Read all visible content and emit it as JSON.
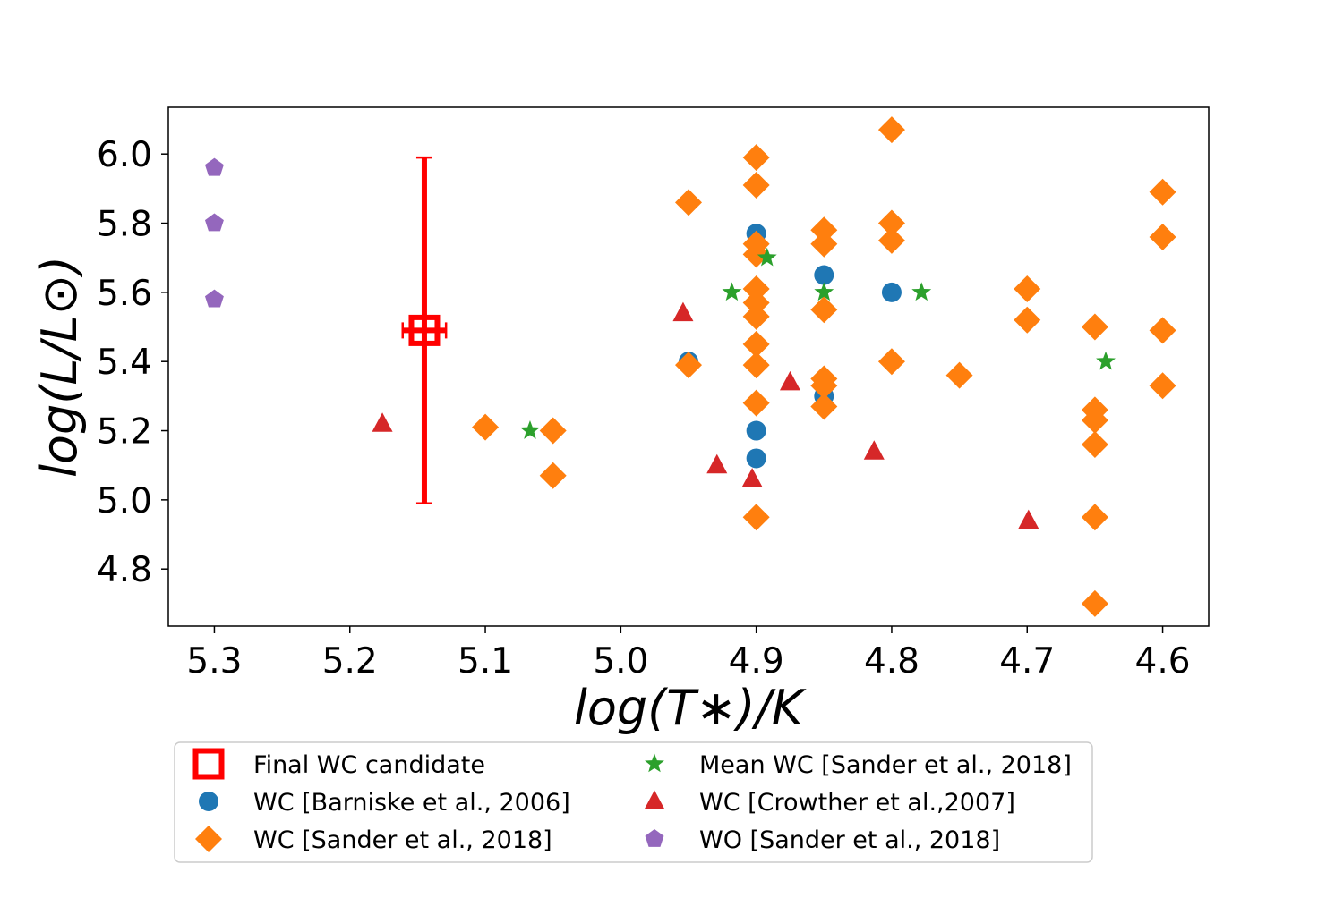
{
  "chart_data": {
    "type": "scatter",
    "title": "",
    "xlabel": "log(T∗)/K",
    "ylabel": "log(L/L⊙)",
    "x_inverted": true,
    "xlim": [
      5.334,
      4.566
    ],
    "ylim": [
      4.635,
      6.135
    ],
    "x_ticks": [
      5.3,
      5.2,
      5.1,
      5.0,
      4.9,
      4.8,
      4.7,
      4.6
    ],
    "x_tick_labels": [
      "5.3",
      "5.2",
      "5.1",
      "5.0",
      "4.9",
      "4.8",
      "4.7",
      "4.6"
    ],
    "y_ticks": [
      4.8,
      5.0,
      5.2,
      5.4,
      5.6,
      5.8,
      6.0
    ],
    "y_tick_labels": [
      "4.8",
      "5.0",
      "5.2",
      "5.4",
      "5.6",
      "5.8",
      "6.0"
    ],
    "grid": false,
    "legend_position": "bottom",
    "series": [
      {
        "name": "Final WC candidate",
        "marker": "square-open",
        "color": "#ff0000",
        "points": [
          {
            "x": 5.145,
            "y": 5.49,
            "x_err": 0.016,
            "y_err": 0.5
          }
        ]
      },
      {
        "name": "WC [Barniske et al., 2006]",
        "marker": "circle",
        "color": "#1f77b4",
        "points": [
          {
            "x": 4.95,
            "y": 5.4
          },
          {
            "x": 4.9,
            "y": 5.77
          },
          {
            "x": 4.9,
            "y": 5.2
          },
          {
            "x": 4.9,
            "y": 5.12
          },
          {
            "x": 4.85,
            "y": 5.65
          },
          {
            "x": 4.85,
            "y": 5.3
          },
          {
            "x": 4.8,
            "y": 5.6
          }
        ]
      },
      {
        "name": "WC [Sander et al., 2018]",
        "marker": "diamond",
        "color": "#ff7f0e",
        "points": [
          {
            "x": 5.1,
            "y": 5.21
          },
          {
            "x": 5.05,
            "y": 5.2
          },
          {
            "x": 5.05,
            "y": 5.07
          },
          {
            "x": 4.95,
            "y": 5.86
          },
          {
            "x": 4.95,
            "y": 5.39
          },
          {
            "x": 4.9,
            "y": 5.99
          },
          {
            "x": 4.9,
            "y": 5.91
          },
          {
            "x": 4.9,
            "y": 5.74
          },
          {
            "x": 4.9,
            "y": 5.71
          },
          {
            "x": 4.9,
            "y": 5.61
          },
          {
            "x": 4.9,
            "y": 5.57
          },
          {
            "x": 4.9,
            "y": 5.53
          },
          {
            "x": 4.9,
            "y": 5.45
          },
          {
            "x": 4.9,
            "y": 5.39
          },
          {
            "x": 4.9,
            "y": 5.28
          },
          {
            "x": 4.9,
            "y": 4.95
          },
          {
            "x": 4.85,
            "y": 5.78
          },
          {
            "x": 4.85,
            "y": 5.74
          },
          {
            "x": 4.85,
            "y": 5.55
          },
          {
            "x": 4.85,
            "y": 5.35
          },
          {
            "x": 4.85,
            "y": 5.33
          },
          {
            "x": 4.85,
            "y": 5.27
          },
          {
            "x": 4.8,
            "y": 6.07
          },
          {
            "x": 4.8,
            "y": 5.8
          },
          {
            "x": 4.8,
            "y": 5.75
          },
          {
            "x": 4.8,
            "y": 5.4
          },
          {
            "x": 4.75,
            "y": 5.36
          },
          {
            "x": 4.7,
            "y": 5.61
          },
          {
            "x": 4.7,
            "y": 5.52
          },
          {
            "x": 4.65,
            "y": 5.5
          },
          {
            "x": 4.65,
            "y": 5.26
          },
          {
            "x": 4.65,
            "y": 5.23
          },
          {
            "x": 4.65,
            "y": 5.16
          },
          {
            "x": 4.65,
            "y": 4.95
          },
          {
            "x": 4.65,
            "y": 4.7
          },
          {
            "x": 4.6,
            "y": 5.89
          },
          {
            "x": 4.6,
            "y": 5.76
          },
          {
            "x": 4.6,
            "y": 5.49
          },
          {
            "x": 4.6,
            "y": 5.33
          }
        ]
      },
      {
        "name": "Mean WC [Sander et al., 2018]",
        "marker": "star",
        "color": "#2ca02c",
        "points": [
          {
            "x": 5.067,
            "y": 5.2
          },
          {
            "x": 4.918,
            "y": 5.6
          },
          {
            "x": 4.892,
            "y": 5.7
          },
          {
            "x": 4.85,
            "y": 5.6
          },
          {
            "x": 4.778,
            "y": 5.6
          },
          {
            "x": 4.642,
            "y": 5.4
          }
        ]
      },
      {
        "name": "WC [Crowther et al.,2007]",
        "marker": "triangle",
        "color": "#d62728",
        "points": [
          {
            "x": 5.176,
            "y": 5.22
          },
          {
            "x": 4.954,
            "y": 5.54
          },
          {
            "x": 4.929,
            "y": 5.1
          },
          {
            "x": 4.903,
            "y": 5.06
          },
          {
            "x": 4.875,
            "y": 5.34
          },
          {
            "x": 4.813,
            "y": 5.14
          },
          {
            "x": 4.699,
            "y": 4.94
          }
        ]
      },
      {
        "name": "WO [Sander et al., 2018]",
        "marker": "pentagon",
        "color": "#9467bd",
        "points": [
          {
            "x": 5.3,
            "y": 5.96
          },
          {
            "x": 5.3,
            "y": 5.8
          },
          {
            "x": 5.3,
            "y": 5.58
          }
        ]
      }
    ],
    "legend": {
      "columns": 2,
      "entries": [
        "Final WC candidate",
        "WC [Barniske et al., 2006]",
        "WC [Sander et al., 2018]",
        "Mean WC [Sander et al., 2018]",
        "WC [Crowther et al.,2007]",
        "WO [Sander et al., 2018]"
      ]
    }
  }
}
